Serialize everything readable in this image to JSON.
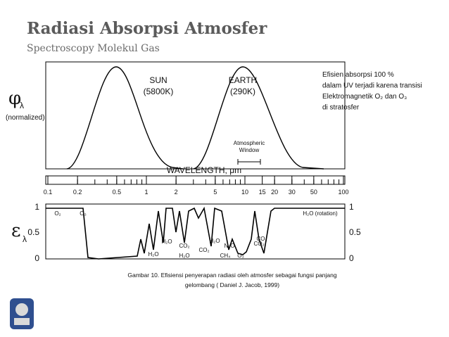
{
  "header": {
    "title": "Radiasi Absorpsi Atmosfer",
    "subtitle": "Spectroscopy Molekul Gas"
  },
  "note": {
    "lines": [
      "Efisien absorpsi 100 %",
      "dalam UV terjadi karena transisi",
      "Elektromagnetik O₂ dan O₃",
      " di stratosfer"
    ]
  },
  "figure": {
    "phi_symbol": "φ",
    "phi_subscript": "λ",
    "normalized": "(normalized)",
    "sun": [
      "SUN",
      "(5800K)"
    ],
    "earth": [
      "EARTH",
      "(290K)"
    ],
    "window": [
      "Atmospheric",
      "Window"
    ],
    "wavelength_axis": "WAVELENGTH, μm",
    "wavelength_ticks": [
      "0.1",
      "0.2",
      "0.5",
      "1",
      "2",
      "5",
      "10",
      "15",
      "20",
      "30",
      "50",
      "100"
    ],
    "epsilon_symbol": "ε",
    "epsilon_subscript": "λ",
    "left_ticks": [
      "1",
      "0.5",
      "0"
    ],
    "right_ticks": [
      "1",
      "0.5",
      "0"
    ],
    "gas_labels": [
      "O₂",
      "O₃",
      "H₂O (rotation)",
      "H₂O",
      "H₂O",
      "CO₂",
      "H₂O",
      "CO₂",
      "H₂O",
      "N₂O",
      "CO₂",
      "CH₄",
      "O₃",
      "CO₂"
    ]
  },
  "caption": {
    "lines": [
      "Gambar 10. Efisiensi penyerapan radiasi oleh atmosfer sebagai fungsi panjang",
      "gelombang ( Daniel J. Jacob, 1999)"
    ]
  }
}
